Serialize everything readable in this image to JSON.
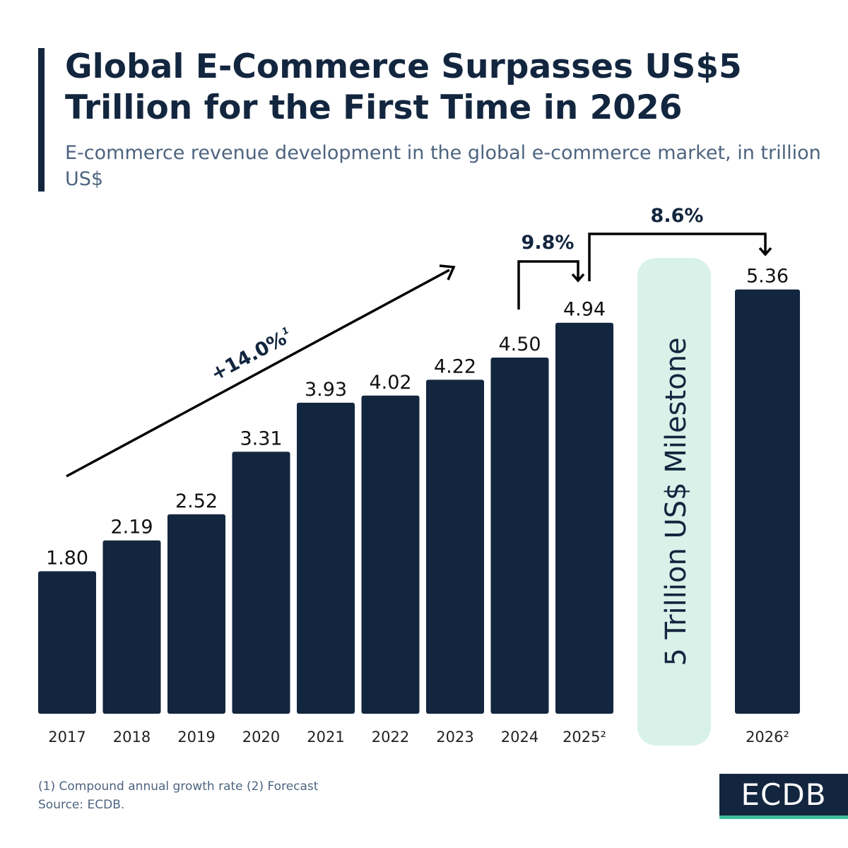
{
  "title": "Global E-Commerce Surpasses US$5 Trillion for the First Time in 2026",
  "subtitle": "E-commerce revenue development in the global e-commerce market, in trillion US$",
  "chart_data": {
    "type": "bar",
    "categories": [
      "2017",
      "2018",
      "2019",
      "2020",
      "2021",
      "2022",
      "2023",
      "2024",
      "2025²",
      "2026²"
    ],
    "values": [
      1.8,
      2.19,
      2.52,
      3.31,
      3.93,
      4.02,
      4.22,
      4.5,
      4.94,
      5.36
    ],
    "value_labels": [
      "1.80",
      "2.19",
      "2.52",
      "3.31",
      "3.93",
      "4.02",
      "4.22",
      "4.50",
      "4.94",
      "5.36"
    ],
    "annotations": {
      "cagr": "+14.0%",
      "cagr_note": "1",
      "growth_2025": "9.8%",
      "growth_2026": "8.6%",
      "milestone": "5 Trillion US$ Milestone"
    },
    "colors": {
      "bar": "#13263f",
      "milestone": "#d8f2ea",
      "annotation": "#13263f"
    }
  },
  "footnote": "(1) Compound annual growth rate (2) Forecast",
  "source": "Source: ECDB.",
  "logo": "ECDB"
}
